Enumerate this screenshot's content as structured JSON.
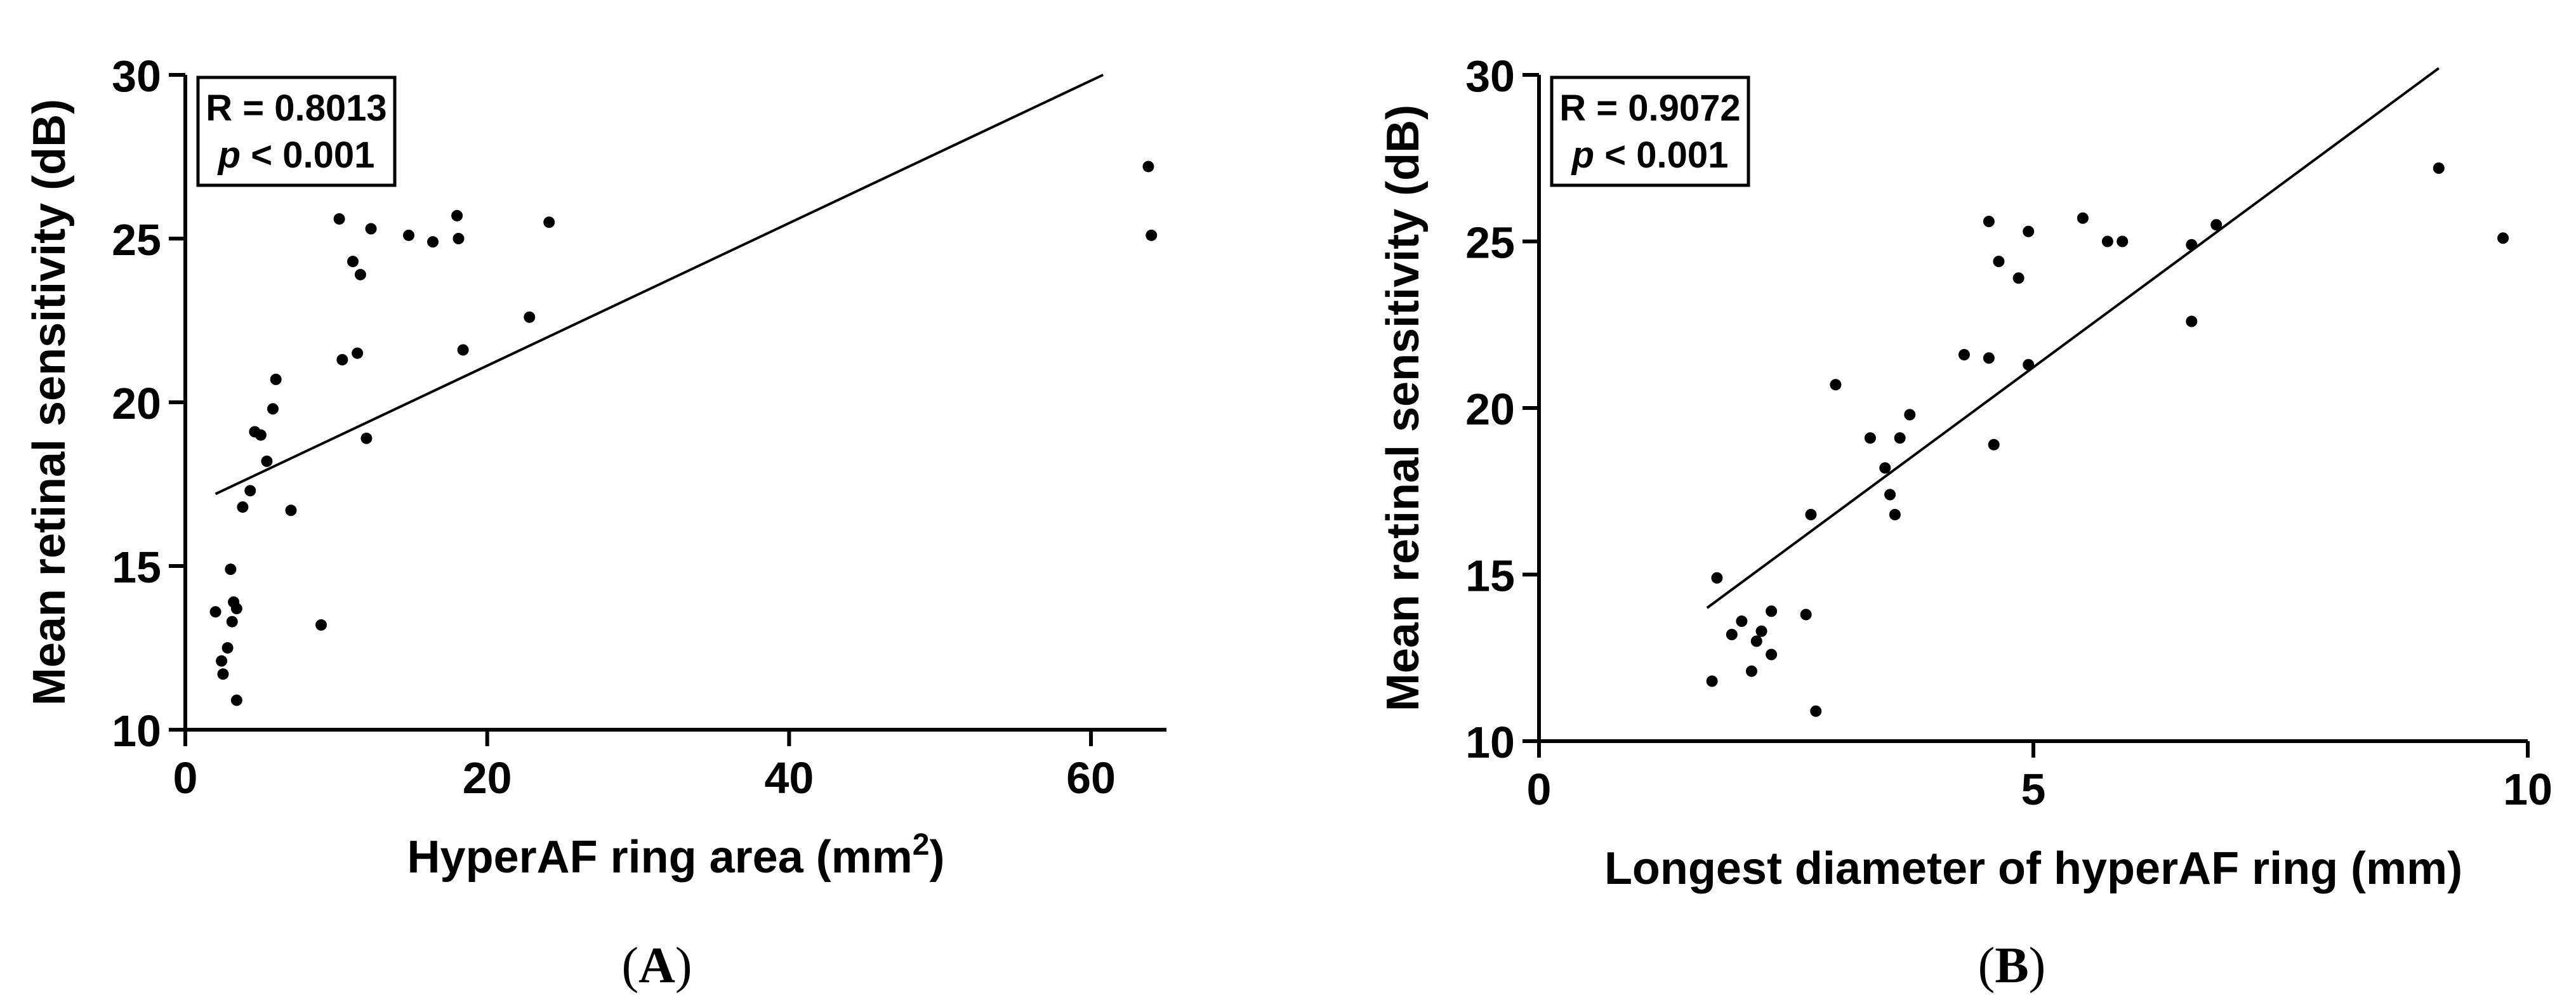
{
  "chart_data": [
    {
      "type": "scatter",
      "panel_label": "A",
      "xlabel": "HyperAF ring area (mm",
      "xlabel_sup": "2",
      "xlabel_suffix": ")",
      "ylabel": "Mean retinal sensitivity (dB)",
      "xlim": [
        0,
        65
      ],
      "ylim": [
        10,
        30
      ],
      "xticks": [
        0,
        20,
        40,
        60
      ],
      "yticks": [
        10,
        15,
        20,
        25,
        30
      ],
      "annotation": {
        "r_text": "R = 0.8013",
        "p_symbol": "p",
        "p_text": " < 0.001"
      },
      "fit_line": {
        "x": [
          2.0,
          60.8
        ],
        "y": [
          17.2,
          30.0
        ]
      },
      "points": [
        {
          "x": 2.0,
          "y": 13.6
        },
        {
          "x": 2.4,
          "y": 12.1
        },
        {
          "x": 2.5,
          "y": 11.7
        },
        {
          "x": 2.8,
          "y": 12.5
        },
        {
          "x": 3.0,
          "y": 14.9
        },
        {
          "x": 3.1,
          "y": 13.3
        },
        {
          "x": 3.2,
          "y": 13.9
        },
        {
          "x": 3.4,
          "y": 13.7
        },
        {
          "x": 3.4,
          "y": 10.9
        },
        {
          "x": 3.8,
          "y": 16.8
        },
        {
          "x": 4.3,
          "y": 17.3
        },
        {
          "x": 4.6,
          "y": 19.1
        },
        {
          "x": 5.0,
          "y": 19.0
        },
        {
          "x": 5.4,
          "y": 18.2
        },
        {
          "x": 5.8,
          "y": 19.8
        },
        {
          "x": 6.0,
          "y": 20.7
        },
        {
          "x": 7.0,
          "y": 16.7
        },
        {
          "x": 9.0,
          "y": 13.2
        },
        {
          "x": 10.2,
          "y": 25.6
        },
        {
          "x": 10.4,
          "y": 21.3
        },
        {
          "x": 11.1,
          "y": 24.3
        },
        {
          "x": 11.4,
          "y": 21.5
        },
        {
          "x": 11.6,
          "y": 23.9
        },
        {
          "x": 12.0,
          "y": 18.9
        },
        {
          "x": 12.3,
          "y": 25.3
        },
        {
          "x": 14.8,
          "y": 25.1
        },
        {
          "x": 16.4,
          "y": 24.9
        },
        {
          "x": 18.0,
          "y": 25.7
        },
        {
          "x": 18.1,
          "y": 25.0
        },
        {
          "x": 18.4,
          "y": 21.6
        },
        {
          "x": 22.8,
          "y": 22.6
        },
        {
          "x": 24.1,
          "y": 25.5
        },
        {
          "x": 63.8,
          "y": 27.2
        },
        {
          "x": 64.0,
          "y": 25.1
        }
      ]
    },
    {
      "type": "scatter",
      "panel_label": "B",
      "xlabel": "Longest diameter of hyperAF ring (mm)",
      "xlabel_sup": "",
      "xlabel_suffix": "",
      "ylabel": "Mean retinal sensitivity (dB)",
      "xlim": [
        0,
        10
      ],
      "ylim": [
        10,
        30
      ],
      "xticks": [
        0,
        5,
        10
      ],
      "yticks": [
        10,
        15,
        20,
        25,
        30
      ],
      "annotation": {
        "r_text": "R = 0.9072",
        "p_symbol": "p",
        "p_text": " < 0.001"
      },
      "fit_line": {
        "x": [
          1.7,
          9.1
        ],
        "y": [
          14.0,
          30.2
        ]
      },
      "points": [
        {
          "x": 1.75,
          "y": 11.8
        },
        {
          "x": 1.8,
          "y": 14.9
        },
        {
          "x": 1.95,
          "y": 13.2
        },
        {
          "x": 2.05,
          "y": 13.6
        },
        {
          "x": 2.15,
          "y": 12.1
        },
        {
          "x": 2.2,
          "y": 13.0
        },
        {
          "x": 2.25,
          "y": 13.3
        },
        {
          "x": 2.35,
          "y": 12.6
        },
        {
          "x": 2.35,
          "y": 13.9
        },
        {
          "x": 2.7,
          "y": 13.8
        },
        {
          "x": 2.75,
          "y": 16.8
        },
        {
          "x": 2.8,
          "y": 10.9
        },
        {
          "x": 3.0,
          "y": 20.7
        },
        {
          "x": 3.35,
          "y": 19.1
        },
        {
          "x": 3.5,
          "y": 18.2
        },
        {
          "x": 3.55,
          "y": 17.4
        },
        {
          "x": 3.6,
          "y": 16.8
        },
        {
          "x": 3.65,
          "y": 19.1
        },
        {
          "x": 3.75,
          "y": 19.8
        },
        {
          "x": 4.3,
          "y": 21.6
        },
        {
          "x": 4.55,
          "y": 21.5
        },
        {
          "x": 4.55,
          "y": 25.6
        },
        {
          "x": 4.6,
          "y": 18.9
        },
        {
          "x": 4.65,
          "y": 24.4
        },
        {
          "x": 4.85,
          "y": 23.9
        },
        {
          "x": 4.95,
          "y": 21.3
        },
        {
          "x": 4.95,
          "y": 25.3
        },
        {
          "x": 5.5,
          "y": 25.7
        },
        {
          "x": 5.75,
          "y": 25.0
        },
        {
          "x": 5.9,
          "y": 25.0
        },
        {
          "x": 6.6,
          "y": 24.9
        },
        {
          "x": 6.6,
          "y": 22.6
        },
        {
          "x": 6.85,
          "y": 25.5
        },
        {
          "x": 9.1,
          "y": 27.2
        },
        {
          "x": 9.75,
          "y": 25.1
        }
      ]
    }
  ]
}
